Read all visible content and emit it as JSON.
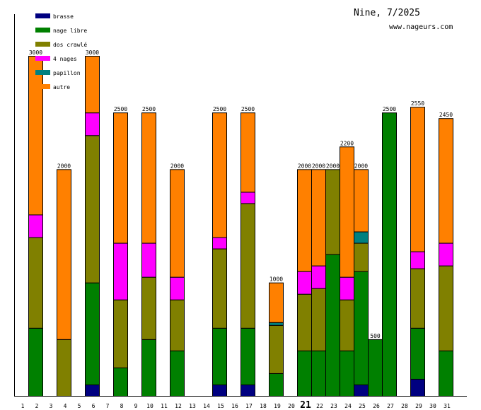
{
  "chart_data": {
    "type": "bar",
    "stacked": true,
    "title": "Nine, 7/2025",
    "subtitle": "www.nageurs.com",
    "xlabel": "",
    "ylabel": "",
    "ylim": [
      0,
      3000
    ],
    "grid": false,
    "legend_position": "top-left",
    "highlighted_day": "21",
    "categories": [
      "1",
      "2",
      "3",
      "4",
      "5",
      "6",
      "7",
      "8",
      "9",
      "10",
      "11",
      "12",
      "13",
      "14",
      "15",
      "16",
      "17",
      "18",
      "19",
      "20",
      "21",
      "22",
      "23",
      "24",
      "25",
      "26",
      "27",
      "28",
      "29",
      "30",
      "31"
    ],
    "totals": [
      null,
      3000,
      null,
      2000,
      null,
      3000,
      null,
      2500,
      null,
      2500,
      null,
      2000,
      null,
      null,
      2500,
      null,
      2500,
      null,
      1000,
      null,
      2000,
      2000,
      2000,
      2200,
      2000,
      500,
      2500,
      null,
      2550,
      null,
      2450
    ],
    "series": [
      {
        "name": "brasse",
        "color": "#000080",
        "values": [
          0,
          0,
          0,
          0,
          0,
          100,
          0,
          0,
          0,
          0,
          0,
          0,
          0,
          0,
          100,
          0,
          100,
          0,
          0,
          0,
          0,
          0,
          0,
          0,
          100,
          0,
          0,
          0,
          150,
          0,
          0
        ]
      },
      {
        "name": "nage libre",
        "color": "#008000",
        "values": [
          0,
          600,
          0,
          0,
          0,
          900,
          0,
          250,
          0,
          500,
          0,
          400,
          0,
          0,
          500,
          0,
          500,
          0,
          200,
          0,
          400,
          400,
          1250,
          400,
          1000,
          500,
          2500,
          0,
          450,
          0,
          400
        ]
      },
      {
        "name": "dos crawlé",
        "color": "#808000",
        "values": [
          0,
          800,
          0,
          500,
          0,
          1300,
          0,
          600,
          0,
          550,
          0,
          450,
          0,
          0,
          700,
          0,
          1100,
          0,
          425,
          0,
          500,
          550,
          750,
          450,
          250,
          0,
          0,
          0,
          525,
          0,
          750
        ]
      },
      {
        "name": "4 nages",
        "color": "#ff00ff",
        "values": [
          0,
          200,
          0,
          0,
          0,
          200,
          0,
          500,
          0,
          300,
          0,
          200,
          0,
          0,
          100,
          0,
          100,
          0,
          0,
          0,
          200,
          200,
          0,
          200,
          0,
          0,
          0,
          0,
          150,
          0,
          200
        ]
      },
      {
        "name": "papillon",
        "color": "#008080",
        "values": [
          0,
          0,
          0,
          0,
          0,
          0,
          0,
          0,
          0,
          0,
          0,
          0,
          0,
          0,
          0,
          0,
          0,
          0,
          25,
          0,
          0,
          0,
          0,
          0,
          100,
          0,
          0,
          0,
          0,
          0,
          0
        ]
      },
      {
        "name": "autre",
        "color": "#ff8000",
        "values": [
          0,
          1400,
          0,
          1500,
          0,
          500,
          0,
          1150,
          0,
          1150,
          0,
          950,
          0,
          0,
          1100,
          0,
          700,
          0,
          350,
          0,
          900,
          850,
          0,
          1150,
          550,
          0,
          0,
          0,
          1275,
          0,
          1100
        ]
      }
    ]
  }
}
